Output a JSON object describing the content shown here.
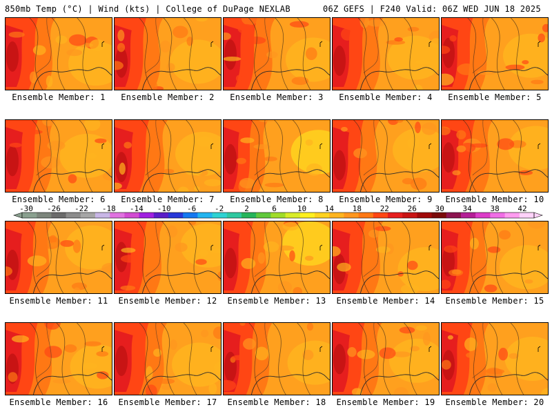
{
  "header": {
    "left": "850mb Temp (°C) | Wind (kts) | College of DuPage NEXLAB",
    "right": "06Z GEFS | F240 Valid: 06Z WED JUN 18 2025"
  },
  "members": [
    {
      "label": "Ensemble Member: 1",
      "warmth": 0.72
    },
    {
      "label": "Ensemble Member: 2",
      "warmth": 0.68
    },
    {
      "label": "Ensemble Member: 3",
      "warmth": 0.78
    },
    {
      "label": "Ensemble Member: 4",
      "warmth": 0.74
    },
    {
      "label": "Ensemble Member: 5",
      "warmth": 0.66
    },
    {
      "label": "Ensemble Member: 6",
      "warmth": 0.7
    },
    {
      "label": "Ensemble Member: 7",
      "warmth": 0.82
    },
    {
      "label": "Ensemble Member: 8",
      "warmth": 0.55
    },
    {
      "label": "Ensemble Member: 9",
      "warmth": 0.64
    },
    {
      "label": "Ensemble Member: 10",
      "warmth": 0.76
    },
    {
      "label": "Ensemble Member: 11",
      "warmth": 0.62
    },
    {
      "label": "Ensemble Member: 12",
      "warmth": 0.72
    },
    {
      "label": "Ensemble Member: 13",
      "warmth": 0.58
    },
    {
      "label": "Ensemble Member: 14",
      "warmth": 0.74
    },
    {
      "label": "Ensemble Member: 15",
      "warmth": 0.66
    },
    {
      "label": "Ensemble Member: 16",
      "warmth": 0.7
    },
    {
      "label": "Ensemble Member: 17",
      "warmth": 0.8
    },
    {
      "label": "Ensemble Member: 18",
      "warmth": 0.68
    },
    {
      "label": "Ensemble Member: 19",
      "warmth": 0.7
    },
    {
      "label": "Ensemble Member: 20",
      "warmth": 0.64
    }
  ],
  "colorbar": {
    "tick_labels": [
      "-30",
      "-26",
      "-22",
      "-18",
      "-14",
      "-10",
      "-6",
      "-2",
      "2",
      "6",
      "10",
      "14",
      "18",
      "22",
      "26",
      "30",
      "34",
      "38",
      "42"
    ],
    "colors": [
      "#8aa08f",
      "#7c857c",
      "#6b6b6b",
      "#8c8c8c",
      "#a6a6a6",
      "#c8b6e6",
      "#e072e0",
      "#d24bd2",
      "#a020e0",
      "#5a1ec8",
      "#2838d8",
      "#1478f0",
      "#22b4f0",
      "#2ed2d2",
      "#2ec8a0",
      "#26b45a",
      "#60c83c",
      "#a0dc28",
      "#d8ec28",
      "#fff01e",
      "#ffd21e",
      "#ffb41e",
      "#ff961e",
      "#ff7814",
      "#ff4614",
      "#e61e1e",
      "#c81414",
      "#a00a0a",
      "#7a0a0a",
      "#8c1450",
      "#b41e96",
      "#dc3cc8",
      "#f06ee6",
      "#ff9cf0",
      "#ffd2fa"
    ]
  }
}
